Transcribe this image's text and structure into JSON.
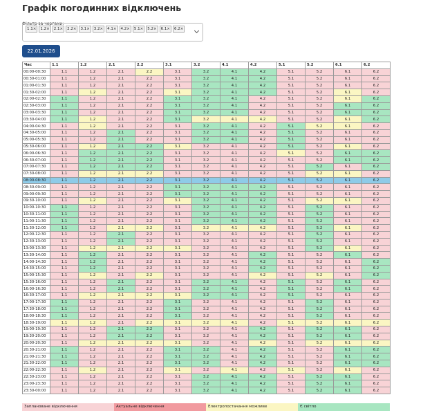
{
  "header": {
    "title": "Графік погодинних відключень"
  },
  "filter": {
    "label": "Фільтр за чергами:",
    "chips": [
      "1.1",
      "1.2",
      "2.1",
      "2.2",
      "3.1",
      "3.2",
      "4.1",
      "4.2",
      "5.1",
      "5.2",
      "6.1",
      "6.2"
    ],
    "chip_remove": "×"
  },
  "date_button": "22.01.2026",
  "table": {
    "time_header": "Час",
    "columns": [
      "1.1",
      "1.2",
      "2.1",
      "2.2",
      "3.1",
      "3.2",
      "4.1",
      "4.2",
      "5.1",
      "5.2",
      "6.1",
      "6.2"
    ],
    "highlight_row": 16,
    "highlight_color": "#8ecbe8",
    "rows": [
      {
        "time": "00:00-00:30",
        "status": "000203330000"
      },
      {
        "time": "00:30-01:00",
        "status": "000003330000"
      },
      {
        "time": "01:00-01:30",
        "status": "000003330000"
      },
      {
        "time": "01:30-02:00",
        "status": "020023330020"
      },
      {
        "time": "02:00-02:30",
        "status": "300033300023"
      },
      {
        "time": "02:30-03:00",
        "status": "300033300033"
      },
      {
        "time": "03:00-03:30",
        "status": "300033300033"
      },
      {
        "time": "03:30-04:00",
        "status": "320032220023"
      },
      {
        "time": "04:00-04:30",
        "status": "020003303220"
      },
      {
        "time": "04:30-05:00",
        "status": "003003303000"
      },
      {
        "time": "05:00-05:30",
        "status": "003003303000"
      },
      {
        "time": "05:30-06:00",
        "status": "023320003020"
      },
      {
        "time": "06:00-06:30",
        "status": "033300002033"
      },
      {
        "time": "06:30-07:00",
        "status": "033300000033"
      },
      {
        "time": "07:00-07:30",
        "status": "033300000303"
      },
      {
        "time": "07:30-08:00",
        "status": "022200000220"
      },
      {
        "time": "08:00-08:30",
        "status": "022200003020"
      },
      {
        "time": "08:30-09:00",
        "status": "000033330000"
      },
      {
        "time": "09:00-09:30",
        "status": "000033330000"
      },
      {
        "time": "09:30-10:00",
        "status": "020023330220"
      },
      {
        "time": "10:00-10:30",
        "status": "300003330300"
      },
      {
        "time": "10:30-11:00",
        "status": "300003330300"
      },
      {
        "time": "11:00-11:30",
        "status": "300003330300"
      },
      {
        "time": "11:30-12:00",
        "status": "302202220320"
      },
      {
        "time": "12:00-12:30",
        "status": "003000000300"
      },
      {
        "time": "12:30-13:00",
        "status": "003000000300"
      },
      {
        "time": "13:00-13:30",
        "status": "022220000320"
      },
      {
        "time": "13:30-14:00",
        "status": "030000030030"
      },
      {
        "time": "14:00-14:30",
        "status": "030000030003"
      },
      {
        "time": "14:30-15:00",
        "status": "030000030003"
      },
      {
        "time": "15:00-15:30",
        "status": "020200020203"
      },
      {
        "time": "15:30-16:00",
        "status": "003003303030"
      },
      {
        "time": "16:00-16:30",
        "status": "003003303030"
      },
      {
        "time": "16:30-17:00",
        "status": "022223303000"
      },
      {
        "time": "17:00-17:30",
        "status": "300030000300"
      },
      {
        "time": "17:30-18:00",
        "status": "300030000300"
      },
      {
        "time": "18:00-18:30",
        "status": "300030000300"
      },
      {
        "time": "18:30-19:00",
        "status": "220222202222"
      },
      {
        "time": "19:00-19:30",
        "status": "003300030330"
      },
      {
        "time": "19:30-20:00",
        "status": "003300030330"
      },
      {
        "time": "20:00-20:30",
        "status": "022220020222"
      },
      {
        "time": "20:30-21:00",
        "status": "300033030033"
      },
      {
        "time": "21:00-21:30",
        "status": "300033030033"
      },
      {
        "time": "21:30-22:00",
        "status": "300033030033"
      },
      {
        "time": "22:00-22:30",
        "status": "020020202020"
      },
      {
        "time": "22:30-23:00",
        "status": "000003330330"
      },
      {
        "time": "23:00-23:30",
        "status": "000003330330"
      },
      {
        "time": "23:30-00:00",
        "status": "000003330330"
      }
    ]
  },
  "legend": [
    {
      "label": "Заплановане відключення",
      "color": "#f8d3d6"
    },
    {
      "label": "Актуальне відключення",
      "color": "#f19a9f"
    },
    {
      "label": "Електропостачання можливе",
      "color": "#fbf6c3"
    },
    {
      "label": "Є світло",
      "color": "#a8e6c1"
    }
  ]
}
